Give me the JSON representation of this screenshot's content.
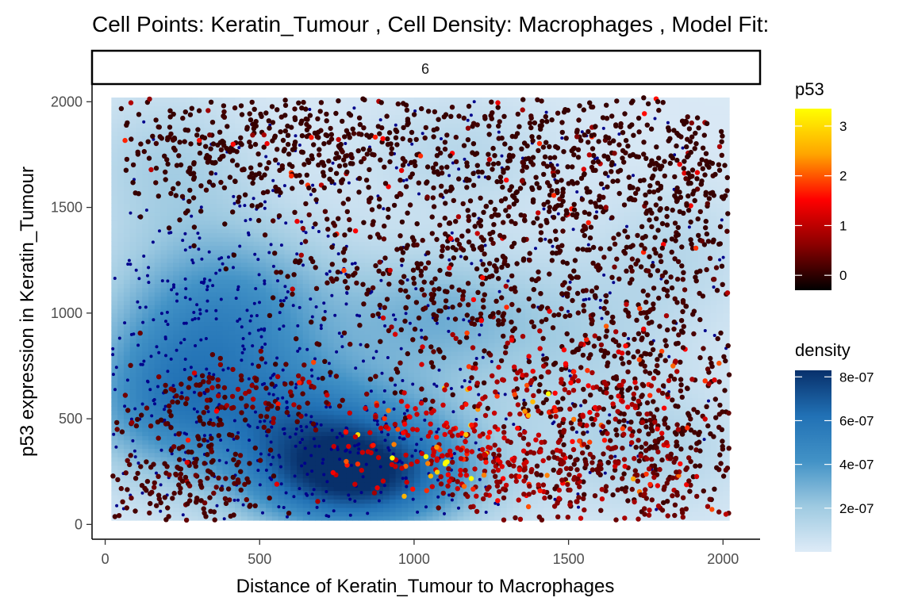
{
  "chart_data": {
    "type": "scatter",
    "title": "Cell Points: Keratin_Tumour , Cell Density: Macrophages , Model Fit:",
    "facet_label": "6",
    "xlabel": "Distance of Keratin_Tumour to Macrophages",
    "ylabel": "p53 expression in Keratin_Tumour",
    "xlim": [
      -40,
      2120
    ],
    "ylim": [
      -70,
      2080
    ],
    "x_ticks": [
      0,
      500,
      1000,
      1500,
      2000
    ],
    "y_ticks": [
      0,
      500,
      1000,
      1500,
      2000
    ],
    "grid": false,
    "density_raster": {
      "x_range": [
        20,
        2020
      ],
      "y_range": [
        20,
        2020
      ],
      "peaks": [
        {
          "x": 810,
          "y": 230,
          "sx": 260,
          "sy": 190,
          "density": 8e-07
        },
        {
          "x": 400,
          "y": 980,
          "sx": 260,
          "sy": 300,
          "density": 4.6e-07
        },
        {
          "x": 600,
          "y": 520,
          "sx": 340,
          "sy": 200,
          "density": 3.6e-07
        },
        {
          "x": 150,
          "y": 600,
          "sx": 170,
          "sy": 260,
          "density": 2.6e-07
        },
        {
          "x": 1050,
          "y": 1000,
          "sx": 200,
          "sy": 200,
          "density": 2.2e-07
        },
        {
          "x": 1450,
          "y": 900,
          "sx": 280,
          "sy": 260,
          "density": 1.5e-07
        },
        {
          "x": 1750,
          "y": 350,
          "sx": 220,
          "sy": 200,
          "density": 1.4e-07
        },
        {
          "x": 200,
          "y": 1700,
          "sx": 200,
          "sy": 240,
          "density": 1.5e-07
        },
        {
          "x": 1150,
          "y": 1750,
          "sx": 220,
          "sy": 200,
          "density": 1.1e-07
        },
        {
          "x": 1850,
          "y": 1300,
          "sx": 180,
          "sy": 220,
          "density": 1e-07
        }
      ]
    },
    "series": [
      {
        "name": "Keratin_Tumour",
        "marker": "points colored by p53",
        "clusters": [
          {
            "x": 750,
            "y": 1820,
            "sx": 320,
            "sy": 120,
            "n": 260,
            "p53": 0.05
          },
          {
            "x": 1650,
            "y": 1650,
            "sx": 260,
            "sy": 250,
            "n": 380,
            "p53": 0.05
          },
          {
            "x": 1250,
            "y": 1550,
            "sx": 180,
            "sy": 260,
            "n": 220,
            "p53": 0.05
          },
          {
            "x": 1700,
            "y": 1000,
            "sx": 250,
            "sy": 250,
            "n": 320,
            "p53": 0.1
          },
          {
            "x": 1750,
            "y": 500,
            "sx": 230,
            "sy": 220,
            "n": 340,
            "p53": 0.1
          },
          {
            "x": 1650,
            "y": 200,
            "sx": 250,
            "sy": 120,
            "n": 200,
            "p53": 0.35
          },
          {
            "x": 1300,
            "y": 250,
            "sx": 160,
            "sy": 140,
            "n": 150,
            "p53": 0.6
          },
          {
            "x": 250,
            "y": 250,
            "sx": 150,
            "sy": 170,
            "n": 230,
            "p53": 0.15
          },
          {
            "x": 950,
            "y": 1150,
            "sx": 200,
            "sy": 260,
            "n": 260,
            "p53": 0.1
          },
          {
            "x": 550,
            "y": 1750,
            "sx": 260,
            "sy": 200,
            "n": 140,
            "p53": 0.05
          },
          {
            "x": 300,
            "y": 1750,
            "sx": 140,
            "sy": 160,
            "n": 100,
            "p53": 0.05
          },
          {
            "x": 450,
            "y": 620,
            "sx": 170,
            "sy": 80,
            "n": 110,
            "p53": 0.3
          },
          {
            "x": 1050,
            "y": 380,
            "sx": 160,
            "sy": 110,
            "n": 140,
            "p53": 1.1
          },
          {
            "x": 1500,
            "y": 650,
            "sx": 200,
            "sy": 150,
            "n": 150,
            "p53": 0.8
          },
          {
            "x": 1900,
            "y": 1600,
            "sx": 100,
            "sy": 250,
            "n": 140,
            "p53": 0.05
          }
        ]
      },
      {
        "name": "Macrophages",
        "marker": "small dark blue dots",
        "clusters": [
          {
            "x": 750,
            "y": 350,
            "sx": 330,
            "sy": 200,
            "n": 260
          },
          {
            "x": 400,
            "y": 1000,
            "sx": 260,
            "sy": 300,
            "n": 210
          },
          {
            "x": 1000,
            "y": 1000,
            "sx": 500,
            "sy": 500,
            "n": 180
          },
          {
            "x": 150,
            "y": 700,
            "sx": 130,
            "sy": 350,
            "n": 90
          },
          {
            "x": 1000,
            "y": 1800,
            "sx": 550,
            "sy": 200,
            "n": 80
          },
          {
            "x": 1700,
            "y": 800,
            "sx": 300,
            "sy": 500,
            "n": 60
          }
        ]
      }
    ],
    "legend": [
      {
        "title": "p53",
        "type": "colorbar",
        "min": -0.3,
        "max": 3.35,
        "ticks": [
          "0",
          "1",
          "2",
          "3"
        ],
        "tick_values": [
          0,
          1,
          2,
          3
        ],
        "colors": [
          "#000000",
          "#8b0000",
          "#ff0000",
          "#ffa500",
          "#ffff00"
        ]
      },
      {
        "title": "density",
        "type": "colorbar",
        "min": 0,
        "max": 8.3e-07,
        "ticks": [
          "2e-07",
          "4e-07",
          "6e-07",
          "8e-07"
        ],
        "tick_values": [
          2e-07,
          4e-07,
          6e-07,
          8e-07
        ],
        "colors": [
          "#deebf7",
          "#9ecae1",
          "#4292c6",
          "#2171b5",
          "#08306b"
        ]
      }
    ],
    "legend_position": "right",
    "colors": {
      "macrophage_points": "#00008b",
      "axis": "#000000",
      "tick_text": "#4d4d4d"
    }
  }
}
